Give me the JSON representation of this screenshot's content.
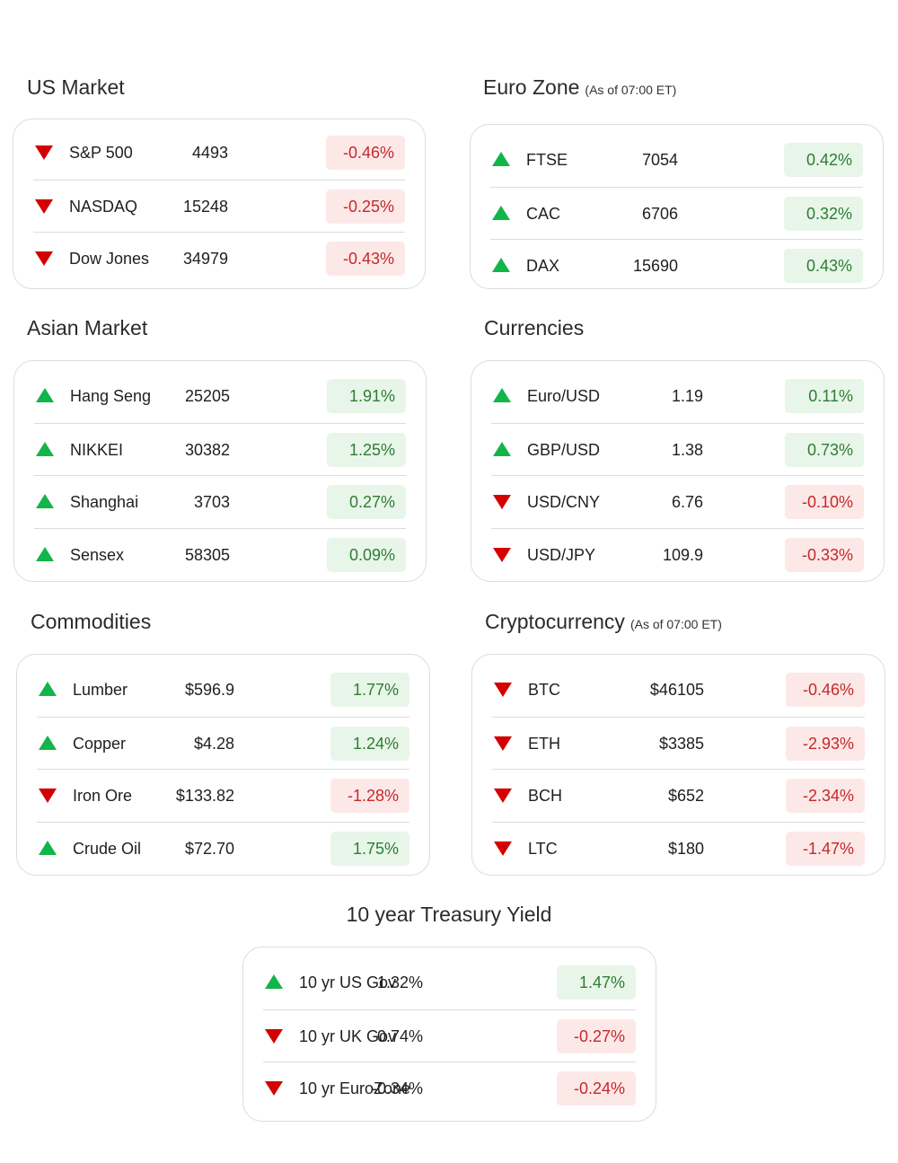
{
  "sections": [
    {
      "title": "US Market",
      "note": "",
      "rows": [
        {
          "name": "S&P 500",
          "value": "4493",
          "change": "-0.46%",
          "dir": "down"
        },
        {
          "name": "NASDAQ",
          "value": "15248",
          "change": "-0.25%",
          "dir": "down"
        },
        {
          "name": "Dow Jones",
          "value": "34979",
          "change": "-0.43%",
          "dir": "down"
        }
      ]
    },
    {
      "title": "Euro Zone",
      "note": "(As of 07:00 ET)",
      "rows": [
        {
          "name": "FTSE",
          "value": "7054",
          "change": "0.42%",
          "dir": "up"
        },
        {
          "name": "CAC",
          "value": "6706",
          "change": "0.32%",
          "dir": "up"
        },
        {
          "name": "DAX",
          "value": "15690",
          "change": "0.43%",
          "dir": "up"
        }
      ]
    },
    {
      "title": "Asian Market",
      "note": "",
      "rows": [
        {
          "name": "Hang Seng",
          "value": "25205",
          "change": "1.91%",
          "dir": "up"
        },
        {
          "name": "NIKKEI",
          "value": "30382",
          "change": "1.25%",
          "dir": "up"
        },
        {
          "name": "Shanghai",
          "value": "3703",
          "change": "0.27%",
          "dir": "up"
        },
        {
          "name": "Sensex",
          "value": "58305",
          "change": "0.09%",
          "dir": "up"
        }
      ]
    },
    {
      "title": "Currencies",
      "note": "",
      "rows": [
        {
          "name": "Euro/USD",
          "value": "1.19",
          "change": "0.11%",
          "dir": "up"
        },
        {
          "name": "GBP/USD",
          "value": "1.38",
          "change": "0.73%",
          "dir": "up"
        },
        {
          "name": "USD/CNY",
          "value": "6.76",
          "change": "-0.10%",
          "dir": "down"
        },
        {
          "name": "USD/JPY",
          "value": "109.9",
          "change": "-0.33%",
          "dir": "down"
        }
      ]
    },
    {
      "title": "Commodities",
      "note": "",
      "rows": [
        {
          "name": "Lumber",
          "value": "$596.9",
          "change": "1.77%",
          "dir": "up"
        },
        {
          "name": "Copper",
          "value": "$4.28",
          "change": "1.24%",
          "dir": "up"
        },
        {
          "name": "Iron Ore",
          "value": "$133.82",
          "change": "-1.28%",
          "dir": "down"
        },
        {
          "name": "Crude Oil",
          "value": "$72.70",
          "change": "1.75%",
          "dir": "up"
        }
      ]
    },
    {
      "title": "Cryptocurrency",
      "note": "(As of 07:00 ET)",
      "rows": [
        {
          "name": "BTC",
          "value": "$46105",
          "change": "-0.46%",
          "dir": "down"
        },
        {
          "name": "ETH",
          "value": "$3385",
          "change": "-2.93%",
          "dir": "down"
        },
        {
          "name": "BCH",
          "value": "$652",
          "change": "-2.34%",
          "dir": "down"
        },
        {
          "name": "LTC",
          "value": "$180",
          "change": "-1.47%",
          "dir": "down"
        }
      ]
    },
    {
      "title": "10 year Treasury Yield",
      "note": "",
      "rows": [
        {
          "name": "10 yr US Gov",
          "value": "1.32%",
          "change": "1.47%",
          "dir": "up"
        },
        {
          "name": "10 yr UK Gov",
          "value": "0.74%",
          "change": "-0.27%",
          "dir": "down"
        },
        {
          "name": "10 yr EuroZone",
          "value": "-0.34%",
          "change": "-0.24%",
          "dir": "down"
        }
      ]
    }
  ],
  "colors": {
    "up": "#12b548",
    "down": "#d40000",
    "pos_bg": "#e8f5e9",
    "neg_bg": "#fde8e8"
  }
}
